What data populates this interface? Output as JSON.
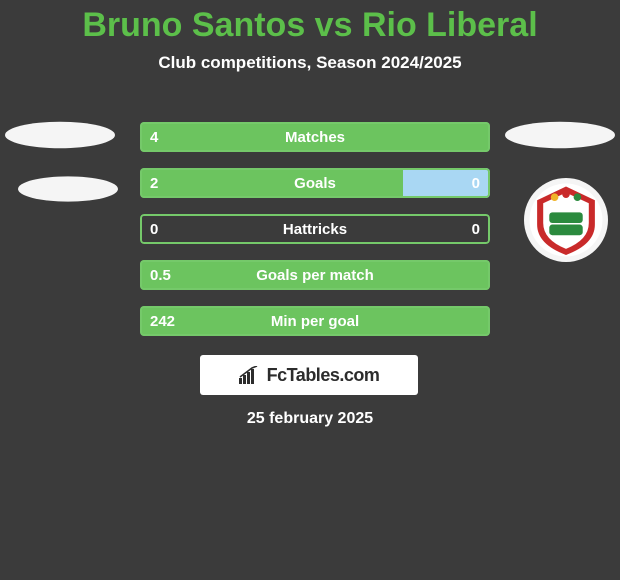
{
  "colors": {
    "background": "#3b3b3b",
    "title": "#5cbf4a",
    "subtitle": "#ffffff",
    "avatar_placeholder": "#f5f5f5",
    "bar_border": "#75c96a",
    "bar_fill_left": "#6cc45f",
    "bar_fill_right": "#a9d7f3",
    "bar_label": "#ffffff",
    "bar_value": "#ffffff",
    "brand_bg": "#ffffff",
    "brand_text": "#2c2c2c",
    "footer_text": "#ffffff",
    "badge_red": "#c92a2a",
    "badge_green": "#2b8a3e",
    "badge_white": "#ffffff",
    "badge_gold": "#f0b429"
  },
  "header": {
    "title": "Bruno Santos vs Rio Liberal",
    "subtitle": "Club competitions, Season 2024/2025"
  },
  "bars": [
    {
      "label": "Matches",
      "left_val": "4",
      "right_val": "",
      "left_pct": 100,
      "right_pct": 0
    },
    {
      "label": "Goals",
      "left_val": "2",
      "right_val": "0",
      "left_pct": 75,
      "right_pct": 25
    },
    {
      "label": "Hattricks",
      "left_val": "0",
      "right_val": "0",
      "left_pct": 0,
      "right_pct": 0
    },
    {
      "label": "Goals per match",
      "left_val": "0.5",
      "right_val": "",
      "left_pct": 100,
      "right_pct": 0
    },
    {
      "label": "Min per goal",
      "left_val": "242",
      "right_val": "",
      "left_pct": 100,
      "right_pct": 0
    }
  ],
  "brand": {
    "text": "FcTables.com"
  },
  "footer": {
    "date": "25 february 2025"
  }
}
